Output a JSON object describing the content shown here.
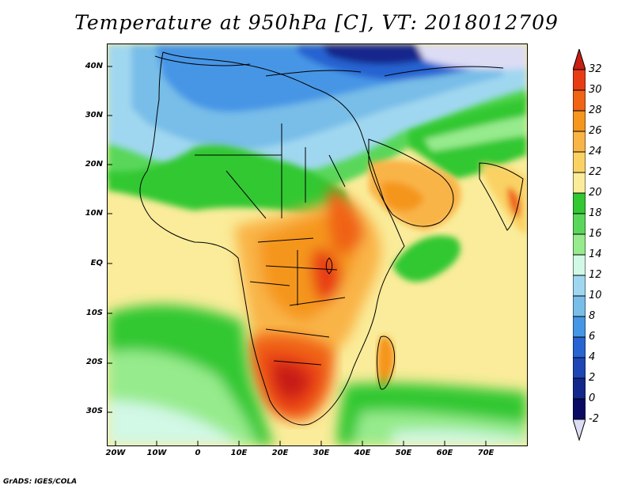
{
  "title": "Temperature at 950hPa [C], VT: 2018012709",
  "footer": "GrADS: IGES/COLA",
  "lat_ticks": [
    "40N",
    "30N",
    "20N",
    "10N",
    "EQ",
    "10S",
    "20S",
    "30S"
  ],
  "lon_ticks": [
    "20W",
    "10W",
    "0",
    "10E",
    "20E",
    "30E",
    "40E",
    "50E",
    "60E",
    "70E"
  ],
  "colorbar": {
    "labels": [
      "32",
      "30",
      "28",
      "26",
      "24",
      "22",
      "20",
      "18",
      "16",
      "14",
      "12",
      "10",
      "8",
      "6",
      "4",
      "2",
      "0",
      "-2"
    ],
    "colors": [
      "#c81e14",
      "#e83c14",
      "#f06414",
      "#f5961e",
      "#f9b446",
      "#fad264",
      "#faec9a",
      "#32c832",
      "#5ad75a",
      "#96eb8c",
      "#d2f8e6",
      "#a0d7f0",
      "#78bee8",
      "#4696e6",
      "#2864d2",
      "#1e46b4",
      "#14288c",
      "#0a0a64",
      "#dcdcf5"
    ]
  }
}
